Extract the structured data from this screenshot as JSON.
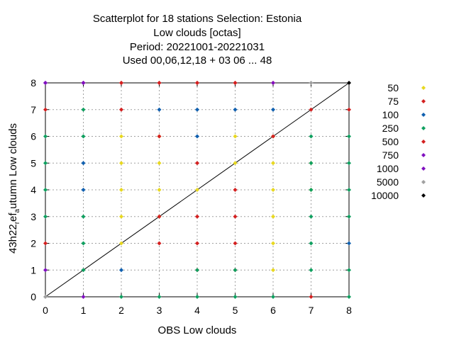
{
  "chart_data": {
    "type": "scatter",
    "title_lines": [
      "Scatterplot for   18 stations Selection: Estonia",
      "Low clouds [octas]",
      "Period: 20221001-20221031",
      "Used  00,06,12,18  + 03 06 ... 48"
    ],
    "xlabel": "OBS Low clouds",
    "ylabel_parts": [
      "43h22",
      "r",
      "ef",
      "a",
      "utumn Low clouds"
    ],
    "xlim": [
      0,
      8
    ],
    "ylim": [
      0,
      8
    ],
    "xticks": [
      "0",
      "1",
      "2",
      "3",
      "4",
      "5",
      "6",
      "7",
      "8"
    ],
    "yticks": [
      "0",
      "1",
      "2",
      "3",
      "4",
      "5",
      "6",
      "7",
      "8"
    ],
    "grid": true,
    "diagonal_line": true,
    "legend_position": "right",
    "series": [
      {
        "name": "50",
        "color": "#e8d820",
        "points": [
          [
            2,
            2
          ],
          [
            2,
            3
          ],
          [
            2,
            4
          ],
          [
            2,
            5
          ],
          [
            2,
            6
          ],
          [
            3,
            3
          ],
          [
            3,
            4
          ],
          [
            3,
            5
          ],
          [
            3,
            6
          ],
          [
            4,
            4
          ],
          [
            5,
            5
          ],
          [
            5,
            6
          ],
          [
            6,
            1
          ],
          [
            6,
            2
          ],
          [
            6,
            3
          ],
          [
            6,
            4
          ],
          [
            6,
            5
          ],
          [
            6,
            6
          ],
          [
            7,
            4
          ],
          [
            7,
            5
          ]
        ]
      },
      {
        "name": "75",
        "color": "#d42020",
        "points": [
          [
            0,
            2
          ],
          [
            0,
            7
          ],
          [
            1,
            8
          ],
          [
            2,
            7
          ],
          [
            2,
            8
          ],
          [
            3,
            2
          ],
          [
            3,
            3
          ],
          [
            3,
            6
          ],
          [
            3,
            8
          ],
          [
            4,
            1
          ],
          [
            4,
            2
          ],
          [
            4,
            3
          ],
          [
            4,
            5
          ],
          [
            4,
            8
          ],
          [
            5,
            1
          ],
          [
            5,
            2
          ],
          [
            5,
            3
          ],
          [
            5,
            4
          ],
          [
            5,
            8
          ],
          [
            6,
            6
          ],
          [
            7,
            0
          ],
          [
            7,
            7
          ],
          [
            8,
            7
          ]
        ]
      },
      {
        "name": "100",
        "color": "#1060b0",
        "points": [
          [
            1,
            4
          ],
          [
            1,
            5
          ],
          [
            2,
            1
          ],
          [
            3,
            7
          ],
          [
            4,
            6
          ],
          [
            4,
            7
          ],
          [
            5,
            7
          ],
          [
            6,
            7
          ],
          [
            8,
            2
          ]
        ]
      },
      {
        "name": "250",
        "color": "#10a060",
        "points": [
          [
            0,
            3
          ],
          [
            0,
            4
          ],
          [
            0,
            5
          ],
          [
            0,
            6
          ],
          [
            1,
            1
          ],
          [
            1,
            2
          ],
          [
            1,
            3
          ],
          [
            1,
            6
          ],
          [
            1,
            7
          ],
          [
            2,
            0
          ],
          [
            3,
            0
          ],
          [
            4,
            0
          ],
          [
            4,
            1
          ],
          [
            5,
            0
          ],
          [
            5,
            1
          ],
          [
            6,
            0
          ],
          [
            7,
            1
          ],
          [
            7,
            2
          ],
          [
            7,
            3
          ],
          [
            7,
            4
          ],
          [
            7,
            5
          ],
          [
            7,
            6
          ],
          [
            8,
            0
          ],
          [
            8,
            1
          ],
          [
            8,
            3
          ],
          [
            8,
            4
          ],
          [
            8,
            5
          ],
          [
            8,
            6
          ]
        ]
      },
      {
        "name": "500",
        "color": "#d42020",
        "points": [
          [
            2,
            8
          ],
          [
            3,
            8
          ],
          [
            4,
            8
          ],
          [
            5,
            8
          ],
          [
            6,
            8
          ]
        ]
      },
      {
        "name": "750",
        "color": "#8010c0",
        "points": [
          [
            0,
            1
          ],
          [
            0,
            8
          ],
          [
            1,
            0
          ],
          [
            1,
            8
          ],
          [
            6,
            8
          ]
        ]
      },
      {
        "name": "1000",
        "color": "#8010c0",
        "points": [
          [
            0,
            8
          ],
          [
            1,
            8
          ]
        ]
      },
      {
        "name": "5000",
        "color": "#a0a0a0",
        "points": [
          [
            0,
            0
          ],
          [
            7,
            8
          ]
        ]
      },
      {
        "name": "10000",
        "color": "#000000",
        "points": [
          [
            8,
            8
          ]
        ]
      }
    ]
  }
}
